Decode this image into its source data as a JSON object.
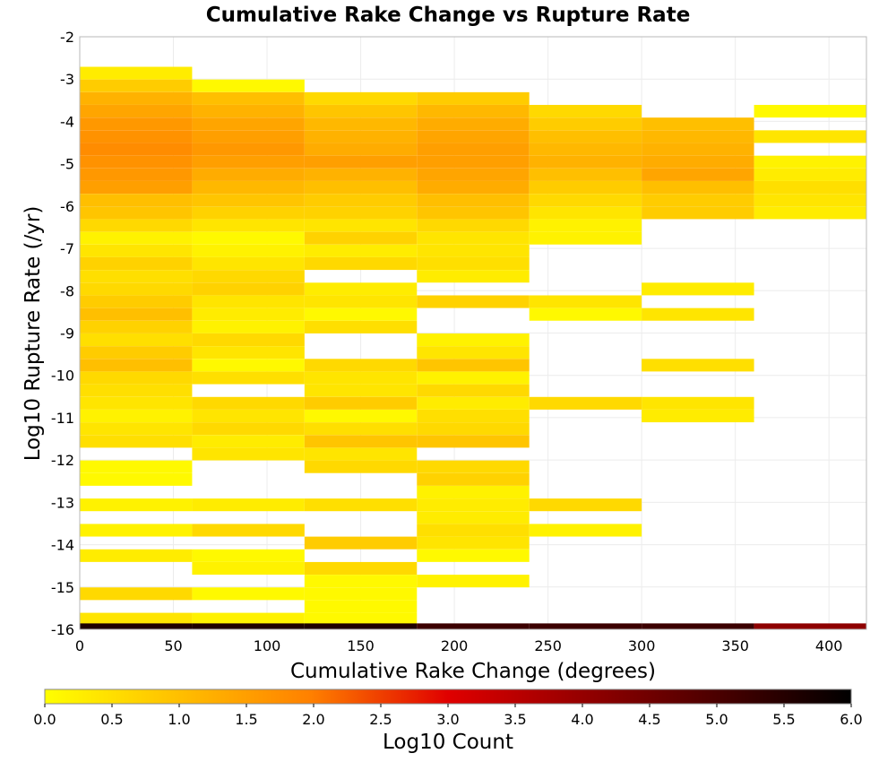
{
  "chart_data": {
    "type": "heatmap",
    "title": "Cumulative Rake Change vs Rupture Rate",
    "xlabel": "Cumulative Rake Change (degrees)",
    "ylabel": "Log10 Rupture Rate (/yr)",
    "xlim": [
      0,
      420
    ],
    "ylim": [
      -16,
      -2
    ],
    "xticks": [
      0,
      50,
      100,
      150,
      200,
      250,
      300,
      350,
      400
    ],
    "yticks": [
      -2,
      -3,
      -4,
      -5,
      -6,
      -7,
      -8,
      -9,
      -10,
      -11,
      -12,
      -13,
      -14,
      -15,
      -16
    ],
    "x_bin_width": 60,
    "y_bin_height": 0.29,
    "grid": true,
    "colorbar": {
      "label": "Log10 Count",
      "range": [
        0.0,
        6.0
      ],
      "ticks": [
        "0.0",
        "0.5",
        "1.0",
        "1.5",
        "2.0",
        "2.5",
        "3.0",
        "3.5",
        "4.0",
        "4.5",
        "5.0",
        "5.5",
        "6.0"
      ],
      "colors": [
        "#ffff00",
        "#ff8000",
        "#e00000",
        "#000000"
      ]
    },
    "bins": [
      {
        "x": 0,
        "cells": [
          [
            -3.0,
            0.3
          ],
          [
            -3.3,
            0.8
          ],
          [
            -3.6,
            1.2
          ],
          [
            -3.9,
            1.4
          ],
          [
            -4.2,
            1.6
          ],
          [
            -4.5,
            1.7
          ],
          [
            -4.8,
            1.8
          ],
          [
            -5.1,
            1.7
          ],
          [
            -5.4,
            1.6
          ],
          [
            -5.7,
            1.5
          ],
          [
            -6.0,
            1.0
          ],
          [
            -6.3,
            0.9
          ],
          [
            -6.6,
            0.6
          ],
          [
            -6.9,
            0.2
          ],
          [
            -7.2,
            0.4
          ],
          [
            -7.5,
            0.7
          ],
          [
            -7.8,
            0.5
          ],
          [
            -8.1,
            0.6
          ],
          [
            -8.4,
            0.8
          ],
          [
            -8.7,
            1.0
          ],
          [
            -9.0,
            0.7
          ],
          [
            -9.3,
            0.5
          ],
          [
            -9.6,
            0.8
          ],
          [
            -9.9,
            1.0
          ],
          [
            -10.2,
            0.6
          ],
          [
            -10.5,
            0.5
          ],
          [
            -10.8,
            0.4
          ],
          [
            -11.1,
            0.2
          ],
          [
            -11.4,
            0.4
          ],
          [
            -11.7,
            0.5
          ],
          [
            -12.3,
            0.1
          ],
          [
            -12.6,
            0.1
          ],
          [
            -13.2,
            0.2
          ],
          [
            -13.8,
            0.2
          ],
          [
            -14.4,
            0.3
          ],
          [
            -15.3,
            0.6
          ],
          [
            -15.9,
            0.4
          ],
          [
            -16.0,
            5.6
          ]
        ]
      },
      {
        "x": 60,
        "cells": [
          [
            -3.3,
            0.1
          ],
          [
            -3.6,
            1.0
          ],
          [
            -3.9,
            1.2
          ],
          [
            -4.2,
            1.4
          ],
          [
            -4.5,
            1.5
          ],
          [
            -4.8,
            1.6
          ],
          [
            -5.1,
            1.5
          ],
          [
            -5.4,
            1.3
          ],
          [
            -5.7,
            1.1
          ],
          [
            -6.0,
            0.9
          ],
          [
            -6.3,
            0.7
          ],
          [
            -6.6,
            0.4
          ],
          [
            -6.9,
            0.1
          ],
          [
            -7.2,
            0.2
          ],
          [
            -7.5,
            0.4
          ],
          [
            -7.8,
            0.6
          ],
          [
            -8.1,
            0.7
          ],
          [
            -8.4,
            0.4
          ],
          [
            -8.7,
            0.3
          ],
          [
            -9.0,
            0.2
          ],
          [
            -9.3,
            0.6
          ],
          [
            -9.6,
            0.4
          ],
          [
            -9.9,
            0.1
          ],
          [
            -10.2,
            0.5
          ],
          [
            -10.8,
            0.6
          ],
          [
            -11.1,
            0.4
          ],
          [
            -11.4,
            0.6
          ],
          [
            -11.7,
            0.3
          ],
          [
            -12.0,
            0.4
          ],
          [
            -13.2,
            0.3
          ],
          [
            -13.8,
            0.6
          ],
          [
            -14.4,
            0.1
          ],
          [
            -14.7,
            0.2
          ],
          [
            -15.3,
            0.1
          ],
          [
            -15.9,
            0.2
          ],
          [
            -16.0,
            5.6
          ]
        ]
      },
      {
        "x": 120,
        "cells": [
          [
            -3.6,
            0.6
          ],
          [
            -3.9,
            0.9
          ],
          [
            -4.2,
            1.1
          ],
          [
            -4.5,
            1.2
          ],
          [
            -4.8,
            1.3
          ],
          [
            -5.1,
            1.5
          ],
          [
            -5.4,
            1.2
          ],
          [
            -5.7,
            1.0
          ],
          [
            -6.0,
            0.8
          ],
          [
            -6.3,
            0.7
          ],
          [
            -6.6,
            0.4
          ],
          [
            -6.9,
            0.7
          ],
          [
            -7.2,
            0.3
          ],
          [
            -7.5,
            0.6
          ],
          [
            -8.1,
            0.3
          ],
          [
            -8.4,
            0.4
          ],
          [
            -8.7,
            0.1
          ],
          [
            -9.0,
            0.5
          ],
          [
            -9.9,
            0.6
          ],
          [
            -10.2,
            0.4
          ],
          [
            -10.5,
            0.4
          ],
          [
            -10.8,
            0.8
          ],
          [
            -11.1,
            0.1
          ],
          [
            -11.4,
            0.5
          ],
          [
            -11.7,
            0.9
          ],
          [
            -12.0,
            0.4
          ],
          [
            -12.3,
            0.6
          ],
          [
            -13.2,
            0.5
          ],
          [
            -14.1,
            0.8
          ],
          [
            -14.7,
            0.6
          ],
          [
            -15.0,
            0.1
          ],
          [
            -15.3,
            0.1
          ],
          [
            -15.6,
            0.1
          ],
          [
            -15.9,
            0.1
          ],
          [
            -16.0,
            5.6
          ]
        ]
      },
      {
        "x": 180,
        "cells": [
          [
            -3.6,
            0.8
          ],
          [
            -3.9,
            1.1
          ],
          [
            -4.2,
            1.3
          ],
          [
            -4.5,
            1.4
          ],
          [
            -4.8,
            1.5
          ],
          [
            -5.1,
            1.5
          ],
          [
            -5.4,
            1.4
          ],
          [
            -5.7,
            1.3
          ],
          [
            -6.0,
            1.0
          ],
          [
            -6.3,
            0.9
          ],
          [
            -6.6,
            0.6
          ],
          [
            -6.9,
            0.4
          ],
          [
            -7.2,
            0.4
          ],
          [
            -7.5,
            0.5
          ],
          [
            -7.8,
            0.3
          ],
          [
            -8.4,
            0.7
          ],
          [
            -9.3,
            0.2
          ],
          [
            -9.6,
            0.4
          ],
          [
            -9.9,
            0.9
          ],
          [
            -10.2,
            0.2
          ],
          [
            -10.5,
            0.6
          ],
          [
            -10.8,
            0.3
          ],
          [
            -11.1,
            0.5
          ],
          [
            -11.4,
            0.6
          ],
          [
            -11.7,
            0.9
          ],
          [
            -12.3,
            0.6
          ],
          [
            -12.6,
            0.7
          ],
          [
            -12.9,
            0.2
          ],
          [
            -13.2,
            0.3
          ],
          [
            -13.5,
            0.3
          ],
          [
            -13.8,
            0.5
          ],
          [
            -14.1,
            0.4
          ],
          [
            -14.4,
            0.1
          ],
          [
            -15.0,
            0.2
          ],
          [
            -16.0,
            5.2
          ]
        ]
      },
      {
        "x": 240,
        "cells": [
          [
            -3.9,
            0.6
          ],
          [
            -4.2,
            0.8
          ],
          [
            -4.5,
            1.0
          ],
          [
            -4.8,
            1.1
          ],
          [
            -5.1,
            1.2
          ],
          [
            -5.4,
            1.0
          ],
          [
            -5.7,
            0.8
          ],
          [
            -6.0,
            0.6
          ],
          [
            -6.3,
            0.4
          ],
          [
            -6.6,
            0.2
          ],
          [
            -6.9,
            0.2
          ],
          [
            -8.4,
            0.4
          ],
          [
            -8.7,
            0.1
          ],
          [
            -10.8,
            0.6
          ],
          [
            -13.2,
            0.6
          ],
          [
            -13.8,
            0.2
          ],
          [
            -16.0,
            5.2
          ]
        ]
      },
      {
        "x": 300,
        "cells": [
          [
            -4.2,
            1.0
          ],
          [
            -4.5,
            1.1
          ],
          [
            -4.8,
            1.2
          ],
          [
            -5.1,
            1.3
          ],
          [
            -5.4,
            1.4
          ],
          [
            -5.7,
            1.0
          ],
          [
            -6.0,
            0.8
          ],
          [
            -6.3,
            0.8
          ],
          [
            -8.1,
            0.3
          ],
          [
            -8.7,
            0.4
          ],
          [
            -9.9,
            0.5
          ],
          [
            -10.8,
            0.4
          ],
          [
            -11.1,
            0.3
          ],
          [
            -16.0,
            5.2
          ]
        ]
      },
      {
        "x": 360,
        "cells": [
          [
            -3.9,
            0.1
          ],
          [
            -4.5,
            0.4
          ],
          [
            -5.1,
            0.2
          ],
          [
            -5.4,
            0.3
          ],
          [
            -5.7,
            0.5
          ],
          [
            -6.0,
            0.4
          ],
          [
            -6.3,
            0.3
          ],
          [
            -16.0,
            4.1
          ]
        ]
      }
    ]
  }
}
